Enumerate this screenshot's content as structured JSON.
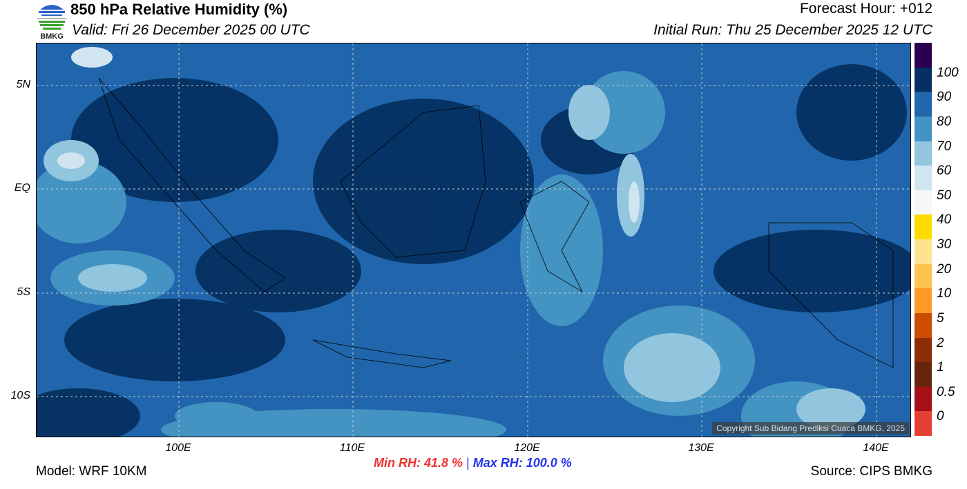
{
  "header": {
    "title": "850 hPa Relative Humidity (%)",
    "valid": "Valid: Fri 26 December 2025 00 UTC",
    "forecast_hour": "Forecast Hour: +012",
    "initial_run": "Initial Run: Thu 25 December 2025 12 UTC",
    "logo_text": "BMKG"
  },
  "map": {
    "lat_labels": [
      "5N",
      "EQ",
      "5S",
      "10S"
    ],
    "lon_labels": [
      "100E",
      "110E",
      "120E",
      "130E",
      "140E"
    ],
    "copyright": "Copyright Sub Bidang Prediksi Cuaca BMKG, 2025"
  },
  "colorbar": {
    "labels": [
      "0",
      "0.5",
      "1",
      "2",
      "5",
      "10",
      "20",
      "30",
      "40",
      "50",
      "60",
      "70",
      "80",
      "90",
      "100"
    ],
    "colors": [
      "#e34033",
      "#a50f15",
      "#67250d",
      "#8c2d04",
      "#cc4c02",
      "#fe9929",
      "#fec44f",
      "#fee391",
      "#fddc00",
      "#f7f7f7",
      "#d1e5f0",
      "#92c5de",
      "#4393c3",
      "#2166ac",
      "#053061",
      "#2b0050"
    ]
  },
  "footer": {
    "model": "Model: WRF 10KM",
    "min_rh": "Min RH:  41.8 %",
    "separator": "|",
    "max_rh": "Max RH: 100.0 %",
    "source": "Source: CIPS BMKG",
    "min_color": "#ee3333",
    "max_color": "#2233ee"
  }
}
